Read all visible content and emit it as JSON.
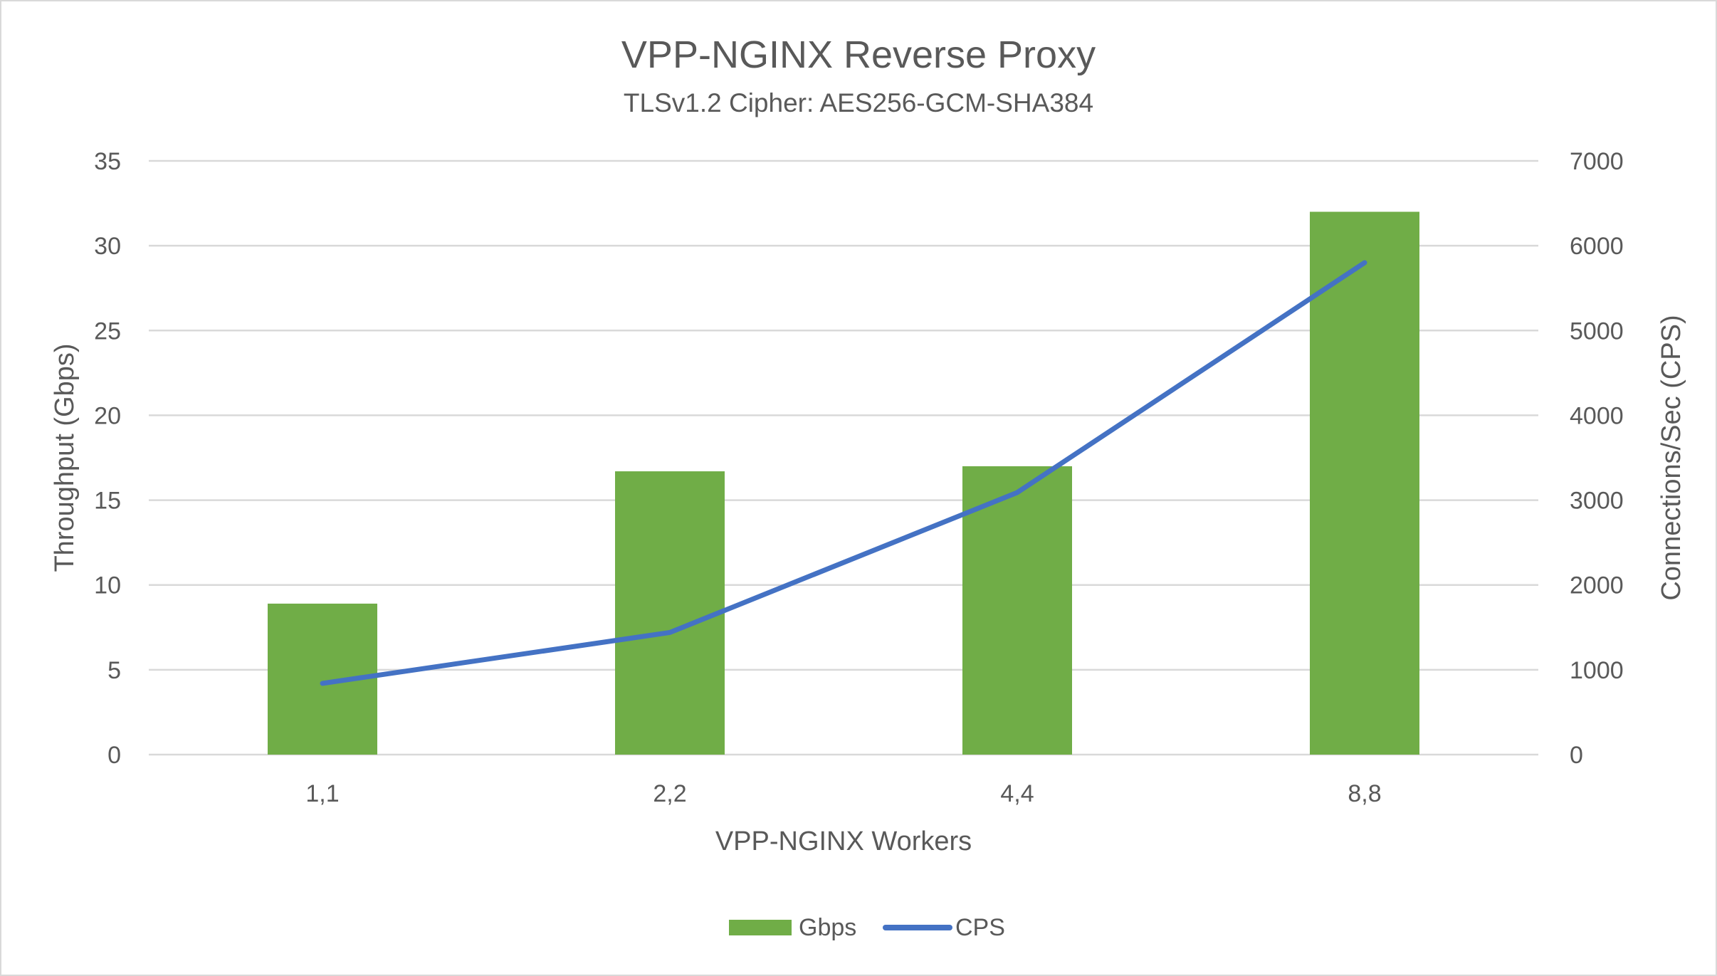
{
  "chart_data": {
    "type": "bar+line",
    "title": "VPP-NGINX Reverse Proxy",
    "subtitle": "TLSv1.2 Cipher: AES256-GCM-SHA384",
    "xlabel": "VPP-NGINX Workers",
    "ylabel": "Throughput (Gbps)",
    "y2label": "Connections/Sec (CPS)",
    "categories": [
      "1,1",
      "2,2",
      "4,4",
      "8,8"
    ],
    "ylim": [
      0,
      35
    ],
    "yticks": [
      0,
      5,
      10,
      15,
      20,
      25,
      30,
      35
    ],
    "y2lim": [
      0,
      7000
    ],
    "y2ticks": [
      0,
      1000,
      2000,
      3000,
      4000,
      5000,
      6000,
      7000
    ],
    "grid": true,
    "legend_position": "bottom",
    "series": [
      {
        "name": "Gbps",
        "type": "bar",
        "axis": "left",
        "color": "#70ad47",
        "values": [
          8.9,
          16.7,
          17.0,
          32.0
        ]
      },
      {
        "name": "CPS",
        "type": "line",
        "axis": "right",
        "color": "#4472c4",
        "values": [
          840,
          1440,
          3090,
          5800
        ]
      }
    ]
  }
}
